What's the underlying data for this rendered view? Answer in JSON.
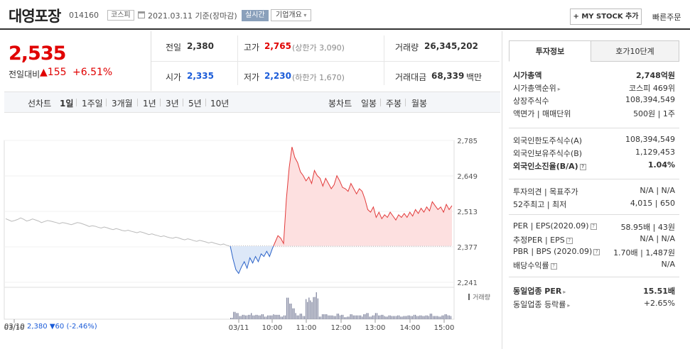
{
  "header": {
    "name": "대영포장",
    "code": "014160",
    "market": "코스피",
    "date": "2021.03.11",
    "basis": "기준(장마감)",
    "live": "실시간",
    "company_info": "기업개요",
    "my_stock": "MY STOCK 추가",
    "quick_order": "빠른주문"
  },
  "price": {
    "current": "2,535",
    "prev_label": "전일대비",
    "change": "155",
    "change_pct": "+6.51%"
  },
  "summary": {
    "prev_close_label": "전일",
    "prev_close": "2,380",
    "high_label": "고가",
    "high": "2,765",
    "upper_limit": "(상한가 3,090)",
    "volume_label": "거래량",
    "volume": "26,345,202",
    "open_label": "시가",
    "open": "2,335",
    "low_label": "저가",
    "low": "2,230",
    "lower_limit": "(하한가 1,670)",
    "amount_label": "거래대금",
    "amount": "68,339",
    "amount_unit": "백만"
  },
  "period_bar": {
    "line_label": "선차트",
    "line_periods": [
      "1일",
      "1주일",
      "3개월",
      "1년",
      "3년",
      "5년",
      "10년"
    ],
    "active_period": "1일",
    "candle_label": "봉차트",
    "candle_periods": [
      "일봉",
      "주봉",
      "월봉"
    ]
  },
  "chart_data": {
    "type": "line",
    "y_ticks": [
      "2,785",
      "2,649",
      "2,513",
      "2,377",
      "2,241"
    ],
    "ylim": [
      2241,
      2785
    ],
    "baseline": 2380,
    "x_ticks": [
      "03/10",
      "03/11",
      "10:00",
      "11:00",
      "12:00",
      "13:00",
      "14:00",
      "15:00"
    ],
    "volume_label": "거래량",
    "footer_date": "03/10",
    "footer_close": "2,380",
    "footer_change": "60",
    "footer_pct": "(-2.46%)",
    "prev_day_series": [
      2485,
      2480,
      2475,
      2478,
      2482,
      2488,
      2483,
      2476,
      2479,
      2484,
      2480,
      2476,
      2470,
      2474,
      2478,
      2476,
      2473,
      2470,
      2466,
      2470,
      2468,
      2465,
      2462,
      2466,
      2470,
      2468,
      2464,
      2460,
      2455,
      2458,
      2456,
      2452,
      2449,
      2453,
      2450,
      2446,
      2443,
      2447,
      2444,
      2440,
      2438,
      2441,
      2437,
      2434,
      2431,
      2435,
      2432,
      2428,
      2424,
      2427,
      2423,
      2420,
      2416,
      2419,
      2415,
      2412,
      2410,
      2414,
      2411,
      2407,
      2404,
      2408,
      2405,
      2401,
      2398,
      2402,
      2399,
      2396,
      2392,
      2395,
      2391,
      2388,
      2385,
      2388,
      2383,
      2380
    ],
    "today_series": [
      2380,
      2330,
      2290,
      2275,
      2300,
      2320,
      2295,
      2335,
      2315,
      2340,
      2320,
      2350,
      2340,
      2360,
      2340,
      2370,
      2395,
      2420,
      2410,
      2390,
      2560,
      2680,
      2760,
      2720,
      2700,
      2665,
      2650,
      2630,
      2645,
      2620,
      2670,
      2650,
      2640,
      2610,
      2640,
      2620,
      2600,
      2615,
      2650,
      2630,
      2605,
      2600,
      2590,
      2620,
      2600,
      2580,
      2600,
      2590,
      2560,
      2520,
      2510,
      2530,
      2490,
      2510,
      2485,
      2500,
      2490,
      2510,
      2495,
      2480,
      2500,
      2490,
      2505,
      2490,
      2510,
      2495,
      2520,
      2505,
      2525,
      2510,
      2530,
      2515,
      2550,
      2535,
      2520,
      2530,
      2510,
      2540,
      2520,
      2535
    ]
  },
  "right_panel": {
    "tab_invest": "투자정보",
    "tab_quote": "호가10단계",
    "rows_1": [
      {
        "label": "시가총액",
        "value": "2,748억원",
        "bold": true
      },
      {
        "label": "시가총액순위",
        "value": "코스피 469위"
      },
      {
        "label": "상장주식수",
        "value": "108,394,549"
      },
      {
        "label": "액면가 | 매매단위",
        "value": "500원 | 1주"
      }
    ],
    "rows_2": [
      {
        "label": "외국인한도주식수(A)",
        "value": "108,394,549"
      },
      {
        "label": "외국인보유주식수(B)",
        "value": "1,129,453"
      },
      {
        "label": "외국인소진율(B/A)",
        "value": "1.04%",
        "bold": true
      }
    ],
    "rows_3": [
      {
        "label": "투자의견 | 목표주가",
        "value": "N/A | N/A"
      },
      {
        "label": "52주최고 | 최저",
        "value": "4,015 | 650"
      }
    ],
    "rows_4": [
      {
        "label": "PER | EPS(2020.09)",
        "value": "58.95배 | 43원"
      },
      {
        "label": "추정PER | EPS",
        "value": "N/A | N/A"
      },
      {
        "label": "PBR | BPS (2020.09)",
        "value": "1.70배 | 1,487원"
      },
      {
        "label": "배당수익률",
        "value": "N/A"
      }
    ],
    "rows_5": [
      {
        "label": "동일업종 PER",
        "value": "15.51배",
        "bold": true
      },
      {
        "label": "동일업종 등락률",
        "value": "+2.65%",
        "red": true
      }
    ]
  }
}
